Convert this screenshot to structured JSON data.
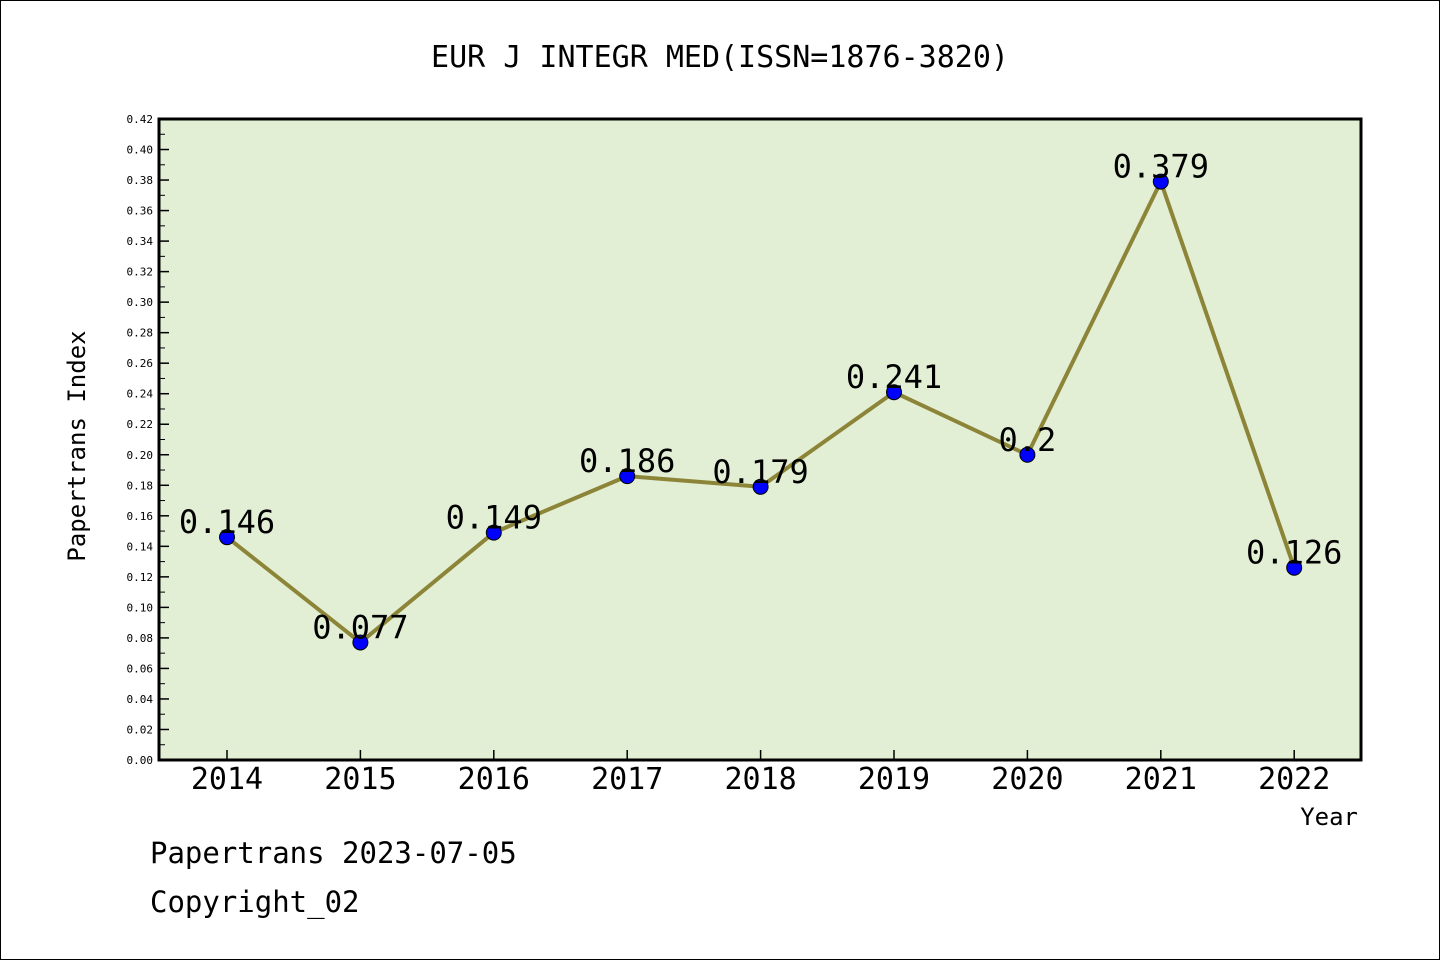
{
  "chart_data": {
    "type": "line",
    "title": "EUR J INTEGR MED(ISSN=1876-3820)",
    "xlabel": "Year",
    "ylabel": "Papertrans Index",
    "categories": [
      "2014",
      "2015",
      "2016",
      "2017",
      "2018",
      "2019",
      "2020",
      "2021",
      "2022"
    ],
    "values": [
      0.146,
      0.077,
      0.149,
      0.186,
      0.179,
      0.241,
      0.2,
      0.379,
      0.126
    ],
    "data_labels": [
      "0.146",
      "0.077",
      "0.149",
      "0.186",
      "0.179",
      "0.241",
      "0.2",
      "0.379",
      "0.126"
    ],
    "ylim": [
      0,
      0.42
    ],
    "y_ticks": [
      "0.00",
      "0.02",
      "0.04",
      "0.06",
      "0.08",
      "0.10",
      "0.12",
      "0.14",
      "0.16",
      "0.18",
      "0.20",
      "0.22",
      "0.24",
      "0.26",
      "0.28",
      "0.30",
      "0.32",
      "0.34",
      "0.36",
      "0.38",
      "0.40",
      "0.42"
    ],
    "grid": false,
    "colors": {
      "plot_background": "#e2efd5",
      "line": "#8c8538",
      "marker": "#0000ff",
      "axis": "#000000"
    }
  },
  "footer": {
    "date_text": "Papertrans 2023-07-05",
    "copyright_text": "Copyright_02"
  }
}
